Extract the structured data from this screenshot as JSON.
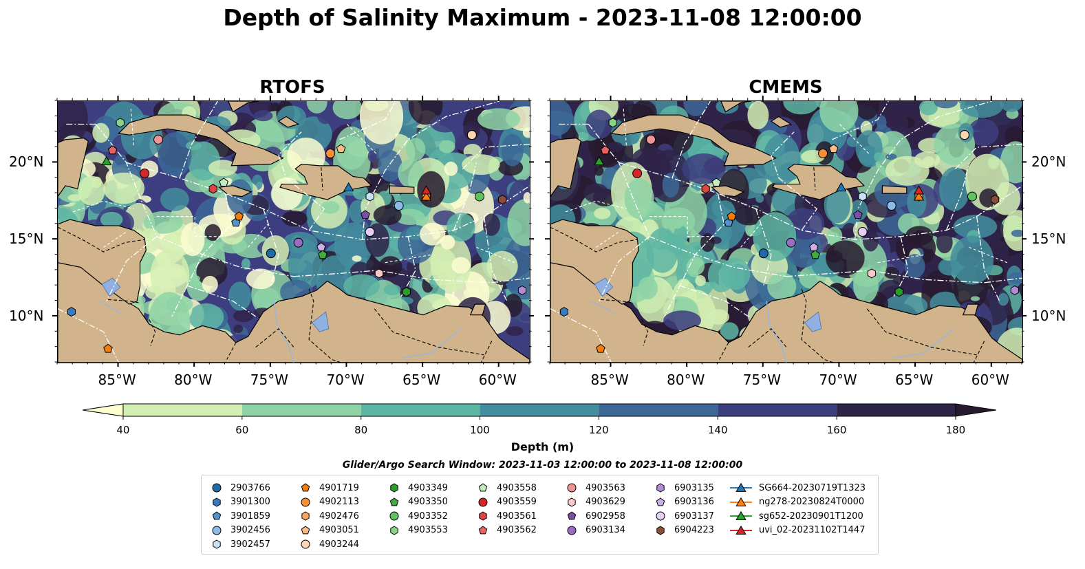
{
  "title": "Depth of Salinity Maximum - 2023-11-08 12:00:00",
  "panels": [
    {
      "title": "RTOFS",
      "palette_shift": 0
    },
    {
      "title": "CMEMS",
      "palette_shift": 1
    }
  ],
  "map": {
    "extent": {
      "lon": [
        -89,
        -58
      ],
      "lat": [
        7,
        24
      ]
    },
    "lon_ticks": [
      {
        "value": -85,
        "label": "85°W"
      },
      {
        "value": -80,
        "label": "80°W"
      },
      {
        "value": -75,
        "label": "75°W"
      },
      {
        "value": -70,
        "label": "70°W"
      },
      {
        "value": -65,
        "label": "65°W"
      },
      {
        "value": -60,
        "label": "60°W"
      }
    ],
    "lat_ticks": [
      {
        "value": 20,
        "label": "20°N"
      },
      {
        "value": 15,
        "label": "15°N"
      },
      {
        "value": 10,
        "label": "10°N"
      }
    ],
    "land_color": "#d2b48c",
    "lake_color": "#8fb0e0"
  },
  "colorbar": {
    "label": "Depth (m)",
    "ticks": [
      "40",
      "60",
      "80",
      "100",
      "120",
      "140",
      "160",
      "180"
    ],
    "colors": [
      "#d4efb3",
      "#8ed4a6",
      "#5db5a3",
      "#438e9e",
      "#3c6796",
      "#3d3e7f",
      "#2f2349"
    ],
    "under_color": "#fdfdd0",
    "over_color": "#271a2f"
  },
  "search_window": "Glider/Argo Search Window: 2023-11-03 12:00:00 to 2023-11-08 12:00:00",
  "legend": [
    {
      "label": "2903766",
      "marker": "circle",
      "color": "#1f6aa5"
    },
    {
      "label": "3901300",
      "marker": "hexagon",
      "color": "#3a7bbf"
    },
    {
      "label": "3901859",
      "marker": "pentagon",
      "color": "#5593cf"
    },
    {
      "label": "3902456",
      "marker": "circle",
      "color": "#8cbbe8"
    },
    {
      "label": "3902457",
      "marker": "hexagon",
      "color": "#c7e1f5"
    },
    {
      "label": "4901719",
      "marker": "pentagon",
      "color": "#f07d0e"
    },
    {
      "label": "4902113",
      "marker": "circle",
      "color": "#f68f35"
    },
    {
      "label": "4902476",
      "marker": "hexagon",
      "color": "#f8a45c"
    },
    {
      "label": "4903051",
      "marker": "pentagon",
      "color": "#fbbd85"
    },
    {
      "label": "4903244",
      "marker": "circle",
      "color": "#fcd6b2"
    },
    {
      "label": "4903349",
      "marker": "hexagon",
      "color": "#2a9d2a"
    },
    {
      "label": "4903350",
      "marker": "pentagon",
      "color": "#41ad41"
    },
    {
      "label": "4903352",
      "marker": "circle",
      "color": "#5fc25f"
    },
    {
      "label": "4903553",
      "marker": "hexagon",
      "color": "#8ad48a"
    },
    {
      "label": "4903558",
      "marker": "pentagon",
      "color": "#c3ecbf"
    },
    {
      "label": "4903559",
      "marker": "circle",
      "color": "#d62728"
    },
    {
      "label": "4903561",
      "marker": "hexagon",
      "color": "#de4444"
    },
    {
      "label": "4903562",
      "marker": "pentagon",
      "color": "#e86464"
    },
    {
      "label": "4903563",
      "marker": "circle",
      "color": "#f09595"
    },
    {
      "label": "4903629",
      "marker": "hexagon",
      "color": "#f9c8c8"
    },
    {
      "label": "6902958",
      "marker": "pentagon",
      "color": "#7b4ea8"
    },
    {
      "label": "6903134",
      "marker": "circle",
      "color": "#9a6cc4"
    },
    {
      "label": "6903135",
      "marker": "hexagon",
      "color": "#b28bd6"
    },
    {
      "label": "6903136",
      "marker": "pentagon",
      "color": "#ccb0e6"
    },
    {
      "label": "6903137",
      "marker": "circle",
      "color": "#e4d0f3"
    },
    {
      "label": "6904223",
      "marker": "hexagon",
      "color": "#8c4e3a"
    },
    {
      "label": "SG664-20230719T1323",
      "marker": "triangle-line",
      "color": "#1f77b4"
    },
    {
      "label": "ng278-20230824T0000",
      "marker": "triangle-line",
      "color": "#ff7f0e"
    },
    {
      "label": "sg652-20230901T1200",
      "marker": "triangle-line",
      "color": "#2ca02c"
    },
    {
      "label": "uvi_02-20231102T1447",
      "marker": "triangle-line",
      "color": "#d62728"
    }
  ],
  "platforms": [
    {
      "id": "2903766",
      "lon": -75.0,
      "lat": 14.1
    },
    {
      "id": "3901300",
      "lon": -88.1,
      "lat": 10.3
    },
    {
      "id": "3901859",
      "lon": -77.3,
      "lat": 16.1
    },
    {
      "id": "3902456",
      "lon": -66.6,
      "lat": 17.2
    },
    {
      "id": "3902457",
      "lon": -68.5,
      "lat": 17.8
    },
    {
      "id": "4901719",
      "lon": -77.1,
      "lat": 16.5
    },
    {
      "id": "4902113",
      "lon": -71.1,
      "lat": 20.6
    },
    {
      "id": "4902476",
      "lon": -64.8,
      "lat": 17.8
    },
    {
      "id": "4903051",
      "lon": -70.4,
      "lat": 20.9
    },
    {
      "id": "4903244",
      "lon": -61.8,
      "lat": 21.8
    },
    {
      "id": "4903349",
      "lon": -66.1,
      "lat": 11.6
    },
    {
      "id": "4903350",
      "lon": -71.6,
      "lat": 14.0
    },
    {
      "id": "4903352",
      "lon": -61.3,
      "lat": 17.8
    },
    {
      "id": "4903553",
      "lon": -84.9,
      "lat": 22.6
    },
    {
      "id": "4903558",
      "lon": -78.1,
      "lat": 18.7
    },
    {
      "id": "4903559",
      "lon": -83.3,
      "lat": 19.3
    },
    {
      "id": "4903561",
      "lon": -78.8,
      "lat": 18.3
    },
    {
      "id": "4903562",
      "lon": -85.4,
      "lat": 20.8
    },
    {
      "id": "4903563",
      "lon": -82.4,
      "lat": 21.5
    },
    {
      "id": "4903629",
      "lon": -67.9,
      "lat": 12.8
    },
    {
      "id": "6902958",
      "lon": -68.8,
      "lat": 16.6
    },
    {
      "id": "6903134",
      "lon": -73.2,
      "lat": 14.8
    },
    {
      "id": "6903135",
      "lon": -58.5,
      "lat": 11.7
    },
    {
      "id": "6903136",
      "lon": -71.7,
      "lat": 14.5
    },
    {
      "id": "6903137",
      "lon": -68.5,
      "lat": 15.5
    },
    {
      "id": "6904223",
      "lon": -59.8,
      "lat": 17.6
    },
    {
      "id": "SG664-20230719T1323",
      "lon": -69.9,
      "lat": 18.4
    },
    {
      "id": "ng278-20230824T0000",
      "lon": -64.8,
      "lat": 17.8
    },
    {
      "id": "sg652-20230901T1200",
      "lon": -85.8,
      "lat": 20.1
    },
    {
      "id": "uvi_02-20231102T1447",
      "lon": -64.8,
      "lat": 18.2
    },
    {
      "id": "4903562",
      "lon": -85.4,
      "lat": 20.8
    },
    {
      "id": "4903244",
      "lon": -61.8,
      "lat": 21.8
    },
    {
      "id": "4901719",
      "lon": -85.7,
      "lat": 7.9
    }
  ]
}
